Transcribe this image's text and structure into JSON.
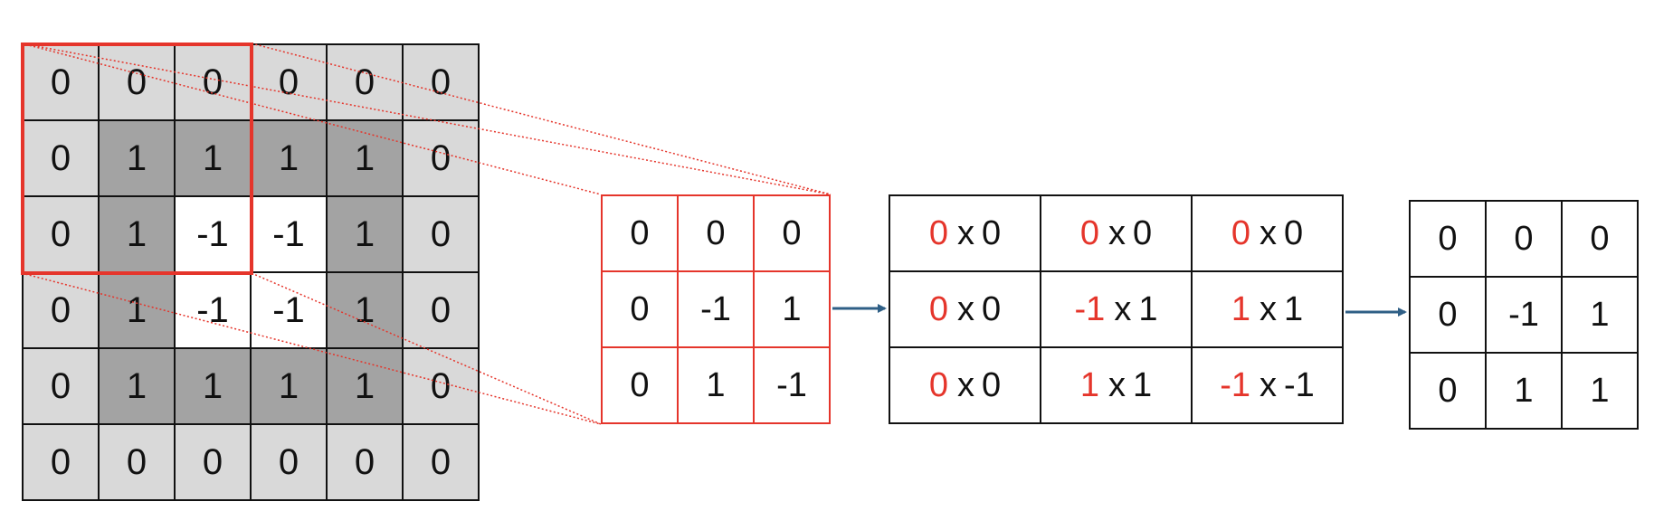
{
  "colors": {
    "light_gray": "#d9d9d9",
    "dark_gray": "#a3a3a3",
    "white": "#ffffff",
    "red": "#e5352b",
    "arrow_blue": "#2f5f86",
    "border": "#111111"
  },
  "input_grid": {
    "values": [
      [
        "0",
        "0",
        "0",
        "0",
        "0",
        "0"
      ],
      [
        "0",
        "1",
        "1",
        "1",
        "1",
        "0"
      ],
      [
        "0",
        "1",
        "-1",
        "-1",
        "1",
        "0"
      ],
      [
        "0",
        "1",
        "-1",
        "-1",
        "1",
        "0"
      ],
      [
        "0",
        "1",
        "1",
        "1",
        "1",
        "0"
      ],
      [
        "0",
        "0",
        "0",
        "0",
        "0",
        "0"
      ]
    ],
    "shades": [
      [
        "light",
        "light",
        "light",
        "light",
        "light",
        "light"
      ],
      [
        "light",
        "dark",
        "dark",
        "dark",
        "dark",
        "light"
      ],
      [
        "light",
        "dark",
        "white",
        "white",
        "dark",
        "light"
      ],
      [
        "light",
        "dark",
        "white",
        "white",
        "dark",
        "light"
      ],
      [
        "light",
        "dark",
        "dark",
        "dark",
        "dark",
        "light"
      ],
      [
        "light",
        "light",
        "light",
        "light",
        "light",
        "light"
      ]
    ]
  },
  "kernel": {
    "values": [
      [
        "0",
        "0",
        "0"
      ],
      [
        "0",
        "-1",
        "1"
      ],
      [
        "0",
        "1",
        "-1"
      ]
    ]
  },
  "products": {
    "cells": [
      [
        {
          "k": "0",
          "op": "x",
          "w": "0"
        },
        {
          "k": "0",
          "op": "x",
          "w": "0"
        },
        {
          "k": "0",
          "op": "x",
          "w": "0"
        }
      ],
      [
        {
          "k": "0",
          "op": "x",
          "w": "0"
        },
        {
          "k": "-1",
          "op": "x",
          "w": "1"
        },
        {
          "k": "1",
          "op": "x",
          "w": "1"
        }
      ],
      [
        {
          "k": "0",
          "op": "x",
          "w": "0"
        },
        {
          "k": "1",
          "op": "x",
          "w": "1"
        },
        {
          "k": "-1",
          "op": "x",
          "w": "-1"
        }
      ]
    ]
  },
  "result": {
    "values": [
      [
        "0",
        "0",
        "0"
      ],
      [
        "0",
        "-1",
        "1"
      ],
      [
        "0",
        "1",
        "1"
      ]
    ]
  }
}
